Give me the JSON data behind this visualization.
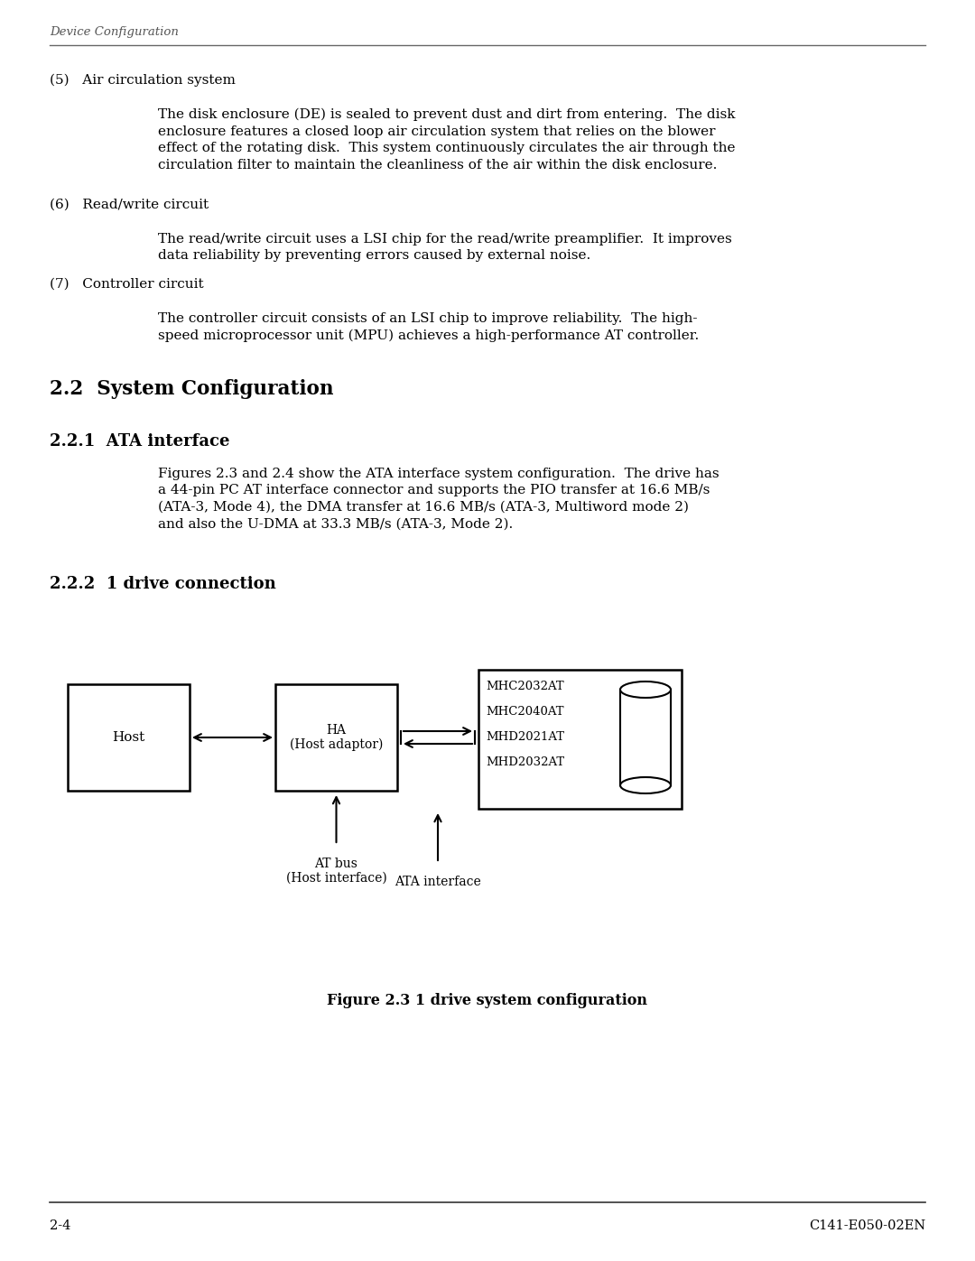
{
  "header_text": "Device Configuration",
  "footer_left": "2-4",
  "footer_right": "C141-E050-02EN",
  "header_line_color": "#666666",
  "footer_line_color": "#333333",
  "section_5_title": "(5)   Air circulation system",
  "section_5_body": "The disk enclosure (DE) is sealed to prevent dust and dirt from entering.  The disk\nenclosure features a closed loop air circulation system that relies on the blower\neffect of the rotating disk.  This system continuously circulates the air through the\ncirculation filter to maintain the cleanliness of the air within the disk enclosure.",
  "section_6_title": "(6)   Read/write circuit",
  "section_6_body": "The read/write circuit uses a LSI chip for the read/write preamplifier.  It improves\ndata reliability by preventing errors caused by external noise.",
  "section_7_title": "(7)   Controller circuit",
  "section_7_body": "The controller circuit consists of an LSI chip to improve reliability.  The high-\nspeed microprocessor unit (MPU) achieves a high-performance AT controller.",
  "section_22_title": "2.2  System Configuration",
  "section_221_title": "2.2.1  ATA interface",
  "section_221_body": "Figures 2.3 and 2.4 show the ATA interface system configuration.  The drive has\na 44-pin PC AT interface connector and supports the PIO transfer at 16.6 MB/s\n(ATA-3, Mode 4), the DMA transfer at 16.6 MB/s (ATA-3, Multiword mode 2)\nand also the U-DMA at 33.3 MB/s (ATA-3, Mode 2).",
  "section_222_title": "2.2.2  1 drive connection",
  "figure_caption": "Figure 2.3 1 drive system configuration",
  "bg_color": "#ffffff",
  "text_color": "#000000"
}
